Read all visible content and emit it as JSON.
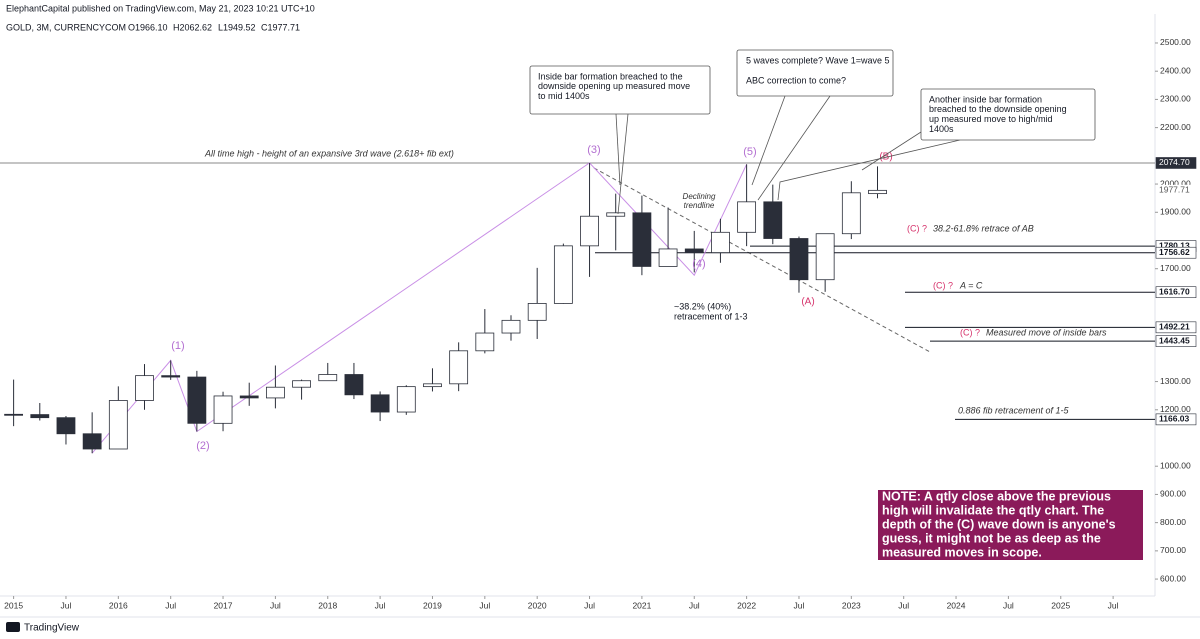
{
  "header": {
    "publisher": "ElephantCapital published on TradingView.com, May 21, 2023 10:21 UTC+10",
    "footer": "TradingView"
  },
  "chart_data": {
    "type": "candlestick",
    "symbol": "GOLD, 3M, CURRENCYCOM",
    "ohlc_labels": [
      "O1966.10",
      "H2062.62",
      "L1949.52",
      "C1977.71"
    ],
    "x": [
      2015,
      2015.25,
      2015.5,
      2015.75,
      2016,
      2016.25,
      2016.5,
      2016.75,
      2017,
      2017.25,
      2017.5,
      2017.75,
      2018,
      2018.25,
      2018.5,
      2018.75,
      2019,
      2019.25,
      2019.5,
      2019.75,
      2020,
      2020.25,
      2020.5,
      2020.75,
      2021,
      2021.25,
      2021.5,
      2021.75,
      2022,
      2022.25,
      2022.5,
      2022.75,
      2023,
      2023.25
    ],
    "open": [
      1184,
      1183,
      1172,
      1115,
      1061,
      1233,
      1321,
      1316,
      1152,
      1249,
      1242,
      1280,
      1303,
      1325,
      1253,
      1192,
      1282,
      1292,
      1409,
      1472,
      1517,
      1577,
      1781,
      1886,
      1898,
      1708,
      1770,
      1757,
      1829,
      1937,
      1807,
      1661,
      1824,
      1966.1
    ],
    "high": [
      1307,
      1224,
      1178,
      1191,
      1283,
      1362,
      1375,
      1338,
      1264,
      1296,
      1357,
      1307,
      1366,
      1366,
      1265,
      1287,
      1347,
      1439,
      1557,
      1535,
      1703,
      1789,
      2075,
      1966,
      1959,
      1917,
      1834,
      1877,
      2070,
      1998,
      1814,
      1824,
      2010,
      2062.62
    ],
    "low": [
      1142,
      1162,
      1077,
      1046,
      1062,
      1200,
      1306,
      1123,
      1124,
      1214,
      1205,
      1236,
      1302,
      1238,
      1160,
      1182,
      1265,
      1266,
      1400,
      1445,
      1451,
      1576,
      1671,
      1765,
      1677,
      1723,
      1687,
      1721,
      1780,
      1787,
      1615,
      1618,
      1805,
      1949.52
    ],
    "close": [
      1183,
      1172,
      1115,
      1061,
      1233,
      1321,
      1316,
      1152,
      1249,
      1242,
      1280,
      1303,
      1325,
      1253,
      1192,
      1282,
      1292,
      1409,
      1472,
      1517,
      1577,
      1781,
      1886,
      1898,
      1708,
      1770,
      1757,
      1829,
      1937,
      1807,
      1661,
      1824,
      1969,
      1977.71
    ],
    "up_color": "#ffffff",
    "down_color": "#2a2e39",
    "border_color": "#2a2e39",
    "xlim": [
      2014.87,
      2025.9
    ],
    "xticks": [
      2015,
      {
        "value": 2015.5,
        "label": "Jul"
      },
      2016,
      {
        "value": 2016.5,
        "label": "Jul"
      },
      2017,
      {
        "value": 2017.5,
        "label": "Jul"
      },
      2018,
      {
        "value": 2018.5,
        "label": "Jul"
      },
      2019,
      {
        "value": 2019.5,
        "label": "Jul"
      },
      2020,
      {
        "value": 2020.5,
        "label": "Jul"
      },
      2021,
      {
        "value": 2021.5,
        "label": "Jul"
      },
      2022,
      {
        "value": 2022.5,
        "label": "Jul"
      },
      2023,
      {
        "value": 2023.5,
        "label": "Jul"
      },
      2024,
      {
        "value": 2024.5,
        "label": "Jul"
      },
      2025,
      {
        "value": 2025.5,
        "label": "Jul"
      }
    ],
    "ylim": [
      540,
      2546
    ],
    "yticks": [
      {
        "value": 2500,
        "label": "2500.00"
      },
      {
        "value": 2400,
        "label": "2400.00"
      },
      {
        "value": 2300,
        "label": "2300.00"
      },
      {
        "value": 2200,
        "label": "2200.00"
      },
      {
        "value": 2000,
        "label": "2000.00"
      },
      {
        "value": 1900,
        "label": "1900.00"
      },
      {
        "value": 1700,
        "label": "1700.00"
      },
      {
        "value": 1300,
        "label": "1300.00"
      },
      {
        "value": 1200,
        "label": "1200.00"
      },
      {
        "value": 1000,
        "label": "1000.00"
      },
      {
        "value": 900,
        "label": "900.00"
      },
      {
        "value": 800,
        "label": "800.00"
      },
      {
        "value": 700,
        "label": "700.00"
      },
      {
        "value": 600,
        "label": "600.00"
      }
    ],
    "grid": false,
    "levels": [
      {
        "value": 2074.7,
        "label": "2074.70"
      },
      {
        "value": 1977.71,
        "label": "1977.71"
      },
      {
        "value": 1780.13,
        "label": "1780.13"
      },
      {
        "value": 1756.62,
        "label": "1756.62"
      },
      {
        "value": 1616.7,
        "label": "1616.70"
      },
      {
        "value": 1492.21,
        "label": "1492.21"
      },
      {
        "value": 1443.45,
        "label": "1443.45"
      },
      {
        "value": 1166.03,
        "label": "1166.03"
      }
    ],
    "wave_path": {
      "x": [
        2015.75,
        2016.5,
        2016.75,
        2020.5,
        2021.5,
        2022.0
      ],
      "y": [
        1046,
        1375,
        1123,
        2075,
        1677,
        2070
      ],
      "color": "#c98fe6"
    },
    "wave_labels": [
      "(1)",
      "(2)",
      "(3)",
      "(4)",
      "(5)",
      "(A)",
      "(B)"
    ],
    "annotations": [
      {
        "lines": [
          "All time high - height of an expansive 3rd wave (2.618+ fib ext)"
        ]
      },
      {
        "lines": [
          "Inside bar formation breached to the",
          "downside opening up measured move",
          "to mid 1400s"
        ]
      },
      {
        "lines": [
          "5 waves complete? Wave 1=wave 5"
        ]
      },
      {
        "lines": [
          "ABC correction to come?"
        ]
      },
      {
        "lines": [
          "Another inside bar formation",
          "breached to the downside opening",
          "up measured move to high/mid",
          "1400s"
        ]
      },
      {
        "lines": [
          "Declining",
          "trendline"
        ]
      },
      {
        "lines": [
          "~38.2% (40%)",
          "retracement of 1-3"
        ]
      },
      {
        "lines": [
          "(C) ?"
        ]
      },
      {
        "lines": [
          "38.2-61.8% retrace of AB"
        ]
      },
      {
        "lines": [
          "(C) ?"
        ]
      },
      {
        "lines": [
          "A = C"
        ]
      },
      {
        "lines": [
          "(C) ?"
        ]
      },
      {
        "lines": [
          "Measured move of inside bars"
        ]
      },
      {
        "lines": [
          "0.886 fib retracement of 1-5"
        ]
      },
      {
        "lines": [
          "NOTE: A qtly close above the previous",
          "high will invalidate the qtly chart. The",
          "depth of the (C) wave down is anyone's",
          "guess, it might not be as deep as the",
          "measured moves in scope."
        ]
      }
    ]
  }
}
